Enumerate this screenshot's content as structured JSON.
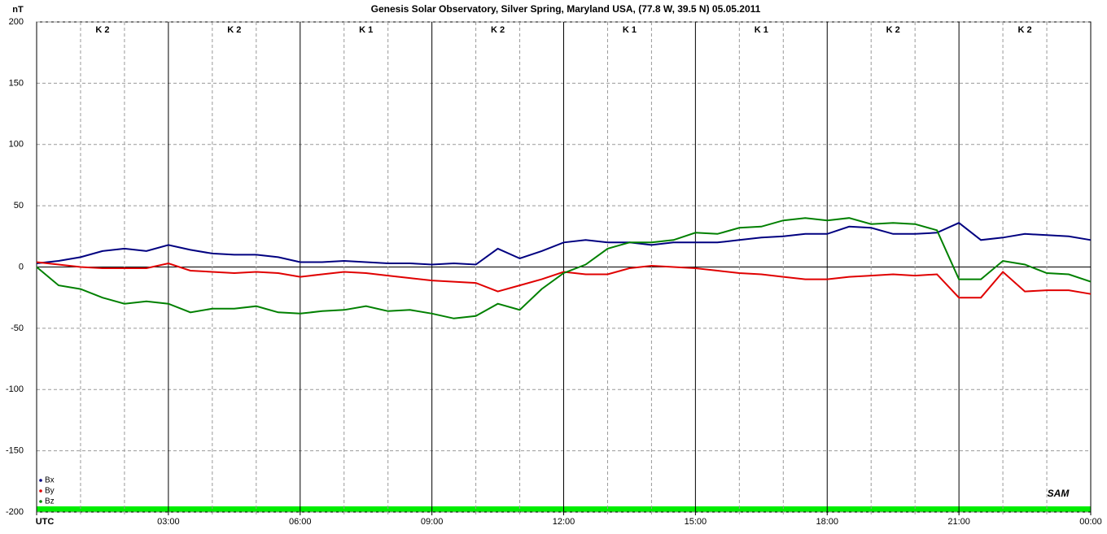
{
  "chart_data": {
    "type": "line",
    "title": "Genesis Solar Observatory, Silver Spring, Maryland USA, (77.8 W, 39.5 N)  05.05.2011",
    "y_label": "nT",
    "x": [
      0,
      0.5,
      1,
      1.5,
      2,
      2.5,
      3,
      3.5,
      4,
      4.5,
      5,
      5.5,
      6,
      6.5,
      7,
      7.5,
      8,
      8.5,
      9,
      9.5,
      10,
      10.5,
      11,
      11.5,
      12,
      12.5,
      13,
      13.5,
      14,
      14.5,
      15,
      15.5,
      16,
      16.5,
      17,
      17.5,
      18,
      18.5,
      19,
      19.5,
      20,
      20.5,
      21,
      21.5,
      22,
      22.5,
      23,
      23.5,
      24
    ],
    "series": [
      {
        "name": "Bx",
        "color": "#000080",
        "values": [
          3,
          5,
          8,
          13,
          15,
          13,
          18,
          14,
          11,
          10,
          10,
          8,
          4,
          4,
          5,
          4,
          3,
          3,
          2,
          3,
          2,
          15,
          7,
          13,
          20,
          22,
          20,
          20,
          18,
          20,
          20,
          20,
          22,
          24,
          25,
          27,
          27,
          33,
          32,
          27,
          27,
          28,
          36,
          22,
          24,
          27,
          26,
          25,
          22
        ]
      },
      {
        "name": "By",
        "color": "#e00000",
        "values": [
          4,
          2,
          0,
          -1,
          -1,
          -1,
          3,
          -3,
          -4,
          -5,
          -4,
          -5,
          -8,
          -6,
          -4,
          -5,
          -7,
          -9,
          -11,
          -12,
          -13,
          -20,
          -15,
          -10,
          -4,
          -6,
          -6,
          -1,
          1,
          0,
          -1,
          -3,
          -5,
          -6,
          -8,
          -10,
          -10,
          -8,
          -7,
          -6,
          -7,
          -6,
          -25,
          -25,
          -4,
          -20,
          -19,
          -19,
          -22
        ]
      },
      {
        "name": "Bz",
        "color": "#008000",
        "values": [
          0,
          -15,
          -18,
          -25,
          -30,
          -28,
          -30,
          -37,
          -34,
          -34,
          -32,
          -37,
          -38,
          -36,
          -35,
          -32,
          -36,
          -35,
          -38,
          -42,
          -40,
          -30,
          -35,
          -18,
          -5,
          2,
          15,
          20,
          20,
          22,
          28,
          27,
          32,
          33,
          38,
          40,
          38,
          40,
          35,
          36,
          35,
          30,
          -10,
          -10,
          5,
          2,
          -5,
          -6,
          -12
        ]
      }
    ],
    "xlim": [
      0,
      24
    ],
    "xticks": [
      {
        "value": 0,
        "label": "UTC"
      },
      {
        "value": 3,
        "label": "03:00"
      },
      {
        "value": 6,
        "label": "06:00"
      },
      {
        "value": 9,
        "label": "09:00"
      },
      {
        "value": 12,
        "label": "12:00"
      },
      {
        "value": 15,
        "label": "15:00"
      },
      {
        "value": 18,
        "label": "18:00"
      },
      {
        "value": 21,
        "label": "21:00"
      },
      {
        "value": 24,
        "label": "00:00"
      }
    ],
    "ylim": [
      -200,
      200
    ],
    "yticks": [
      -200,
      -150,
      -100,
      -50,
      0,
      50,
      100,
      150,
      200
    ],
    "k_indices": [
      "K 2",
      "K 2",
      "K 1",
      "K 2",
      "K 1",
      "K 1",
      "K 2",
      "K 2"
    ],
    "logo": "SAM",
    "grid": true
  }
}
